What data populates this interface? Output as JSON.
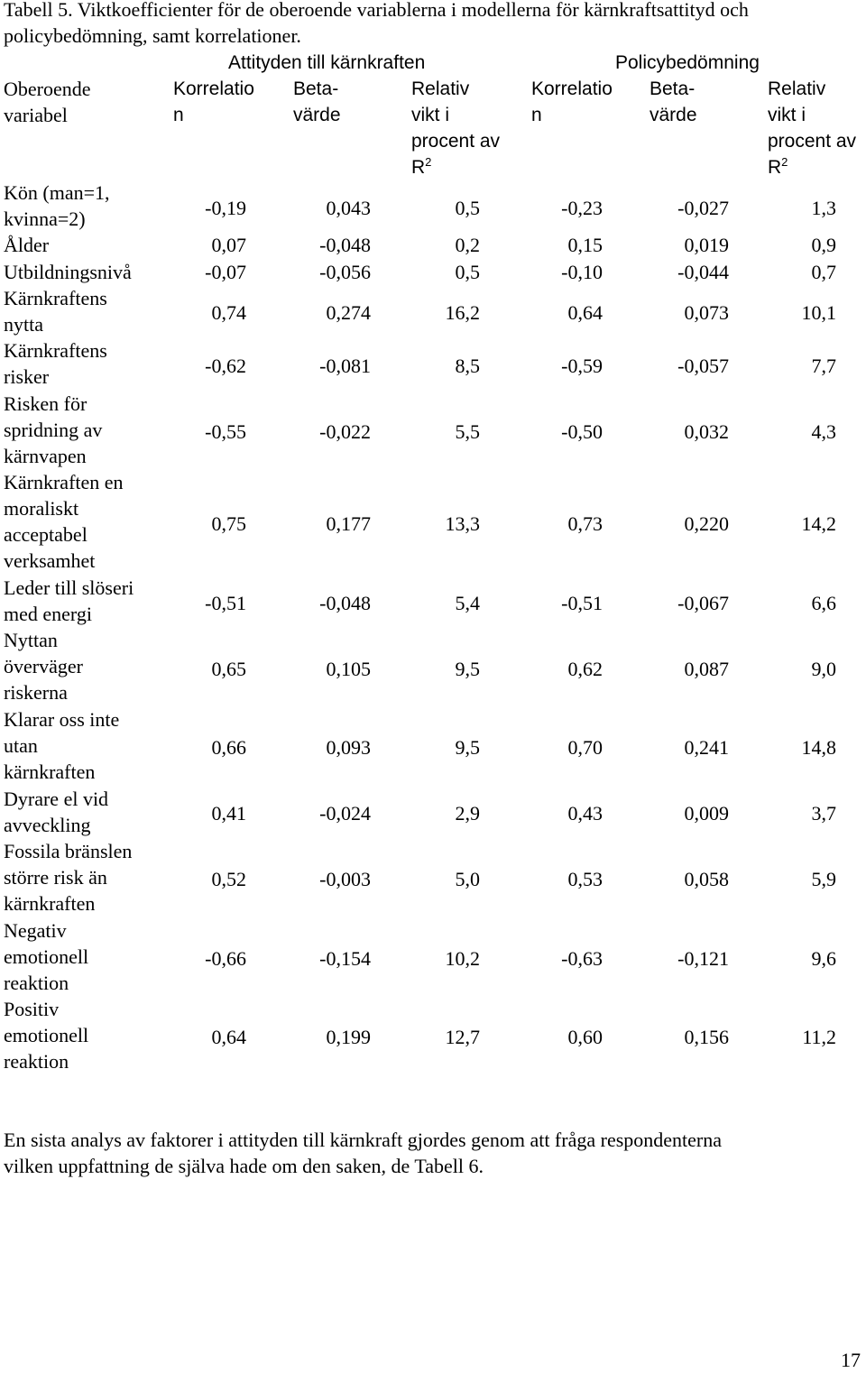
{
  "caption": {
    "line1": "Tabell 5. Viktkoefficienter för de oberoende variablerna i modellerna för kärnkraftsattityd och",
    "line2": "policybedömning, samt korrelationer."
  },
  "group_headers": {
    "attitude": "Attityden till kärnkraften",
    "policy": "Policybedömning"
  },
  "column_headers": {
    "variable": [
      "Oberoende",
      "variabel"
    ],
    "korrelation": [
      "Korrelatio",
      "n"
    ],
    "beta": [
      "Beta-",
      "värde"
    ],
    "relativ": [
      "Relativ",
      "vikt i",
      "procent av",
      "R"
    ],
    "r_superscript": "2"
  },
  "rows": [
    {
      "label": [
        "Kön (man=1,",
        "kvinna=2)"
      ],
      "values": [
        "-0,19",
        "0,043",
        "0,5",
        "-0,23",
        "-0,027",
        "1,3"
      ]
    },
    {
      "label": [
        "Ålder"
      ],
      "values": [
        "0,07",
        "-0,048",
        "0,2",
        "0,15",
        "0,019",
        "0,9"
      ]
    },
    {
      "label": [
        "Utbildningsnivå"
      ],
      "values": [
        "-0,07",
        "-0,056",
        "0,5",
        "-0,10",
        "-0,044",
        "0,7"
      ]
    },
    {
      "label": [
        "Kärnkraftens",
        "nytta"
      ],
      "values": [
        "0,74",
        "0,274",
        "16,2",
        "0,64",
        "0,073",
        "10,1"
      ]
    },
    {
      "label": [
        "Kärnkraftens",
        "risker"
      ],
      "values": [
        "-0,62",
        "-0,081",
        "8,5",
        "-0,59",
        "-0,057",
        "7,7"
      ]
    },
    {
      "label": [
        "Risken för",
        "spridning av",
        "kärnvapen"
      ],
      "values": [
        "-0,55",
        "-0,022",
        "5,5",
        "-0,50",
        "0,032",
        "4,3"
      ]
    },
    {
      "label": [
        "Kärnkraften en",
        "moraliskt",
        "acceptabel",
        "verksamhet"
      ],
      "values": [
        "0,75",
        "0,177",
        "13,3",
        "0,73",
        "0,220",
        "14,2"
      ]
    },
    {
      "label": [
        "Leder till slöseri",
        "med energi"
      ],
      "values": [
        "-0,51",
        "-0,048",
        "5,4",
        "-0,51",
        "-0,067",
        "6,6"
      ]
    },
    {
      "label": [
        "Nyttan",
        "överväger",
        "riskerna"
      ],
      "values": [
        "0,65",
        "0,105",
        "9,5",
        "0,62",
        "0,087",
        "9,0"
      ]
    },
    {
      "label": [
        "Klarar oss inte",
        "utan",
        "kärnkraften"
      ],
      "values": [
        "0,66",
        "0,093",
        "9,5",
        "0,70",
        "0,241",
        "14,8"
      ]
    },
    {
      "label": [
        "Dyrare el vid",
        "avveckling"
      ],
      "values": [
        "0,41",
        "-0,024",
        "2,9",
        "0,43",
        "0,009",
        "3,7"
      ]
    },
    {
      "label": [
        "Fossila bränslen",
        "större risk än",
        "kärnkraften"
      ],
      "values": [
        "0,52",
        "-0,003",
        "5,0",
        "0,53",
        "0,058",
        "5,9"
      ]
    },
    {
      "label": [
        "Negativ",
        "emotionell",
        "reaktion"
      ],
      "values": [
        "-0,66",
        "-0,154",
        "10,2",
        "-0,63",
        "-0,121",
        "9,6"
      ]
    },
    {
      "label": [
        "Positiv",
        "emotionell",
        "reaktion"
      ],
      "values": [
        "0,64",
        "0,199",
        "12,7",
        "0,60",
        "0,156",
        "11,2"
      ]
    }
  ],
  "note": {
    "line1": "En sista analys av faktorer i attityden till kärnkraft gjordes genom att fråga respondenterna",
    "line2": "vilken uppfattning de själva hade om den saken, de Tabell 6."
  },
  "page_number": "17"
}
